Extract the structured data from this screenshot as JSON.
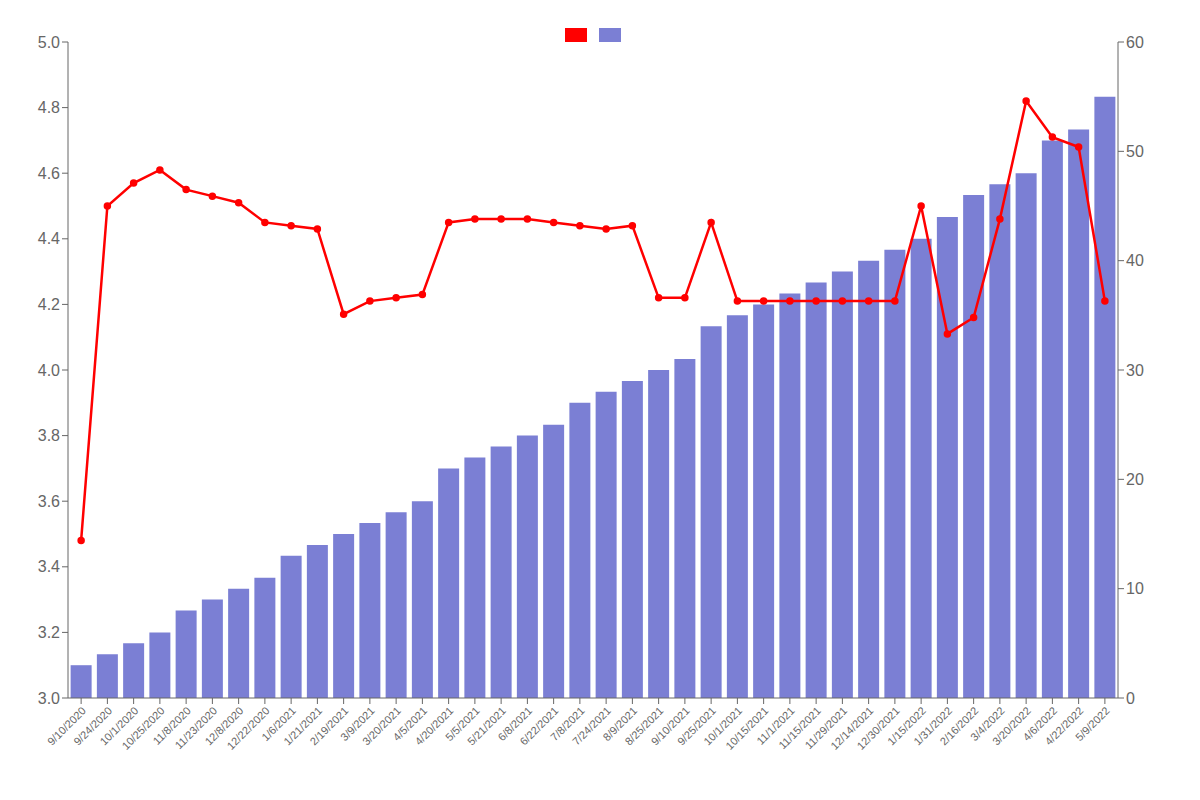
{
  "chart_data": {
    "type": "bar",
    "categories": [
      "9/10/2020",
      "9/24/2020",
      "10/1/2020",
      "10/25/2020",
      "11/8/2020",
      "11/23/2020",
      "12/8/2020",
      "12/22/2020",
      "1/6/2021",
      "1/21/2021",
      "2/19/2021",
      "3/9/2021",
      "3/20/2021",
      "4/5/2021",
      "4/20/2021",
      "5/5/2021",
      "5/21/2021",
      "6/8/2021",
      "6/22/2021",
      "7/8/2021",
      "7/24/2021",
      "8/9/2021",
      "8/25/2021",
      "9/10/2021",
      "9/25/2021",
      "10/1/2021",
      "10/15/2021",
      "11/1/2021",
      "11/15/2021",
      "11/29/2021",
      "12/14/2021",
      "12/30/2021",
      "1/15/2022",
      "1/31/2022",
      "2/16/2022",
      "3/4/2022",
      "3/20/2022",
      "4/6/2022",
      "4/22/2022",
      "5/9/2022"
    ],
    "series": [
      {
        "type": "bar",
        "color": "#7b7fd4",
        "axis": "y2",
        "values": [
          3,
          4,
          5,
          6,
          8,
          9,
          10,
          11,
          13,
          14,
          15,
          16,
          17,
          18,
          21,
          22,
          23,
          24,
          25,
          27,
          28,
          29,
          30,
          31,
          34,
          35,
          36,
          37,
          38,
          39,
          40,
          41,
          42,
          44,
          46,
          47,
          48,
          51,
          52,
          55
        ]
      },
      {
        "type": "line",
        "color": "#ff0000",
        "marker": "circle",
        "values": [
          3.48,
          4.5,
          4.57,
          4.61,
          4.55,
          4.53,
          4.51,
          4.45,
          4.44,
          4.43,
          4.17,
          4.21,
          4.22,
          4.23,
          4.45,
          4.46,
          4.46,
          4.46,
          4.45,
          4.44,
          4.43,
          4.44,
          4.22,
          4.22,
          4.45,
          4.21,
          4.21,
          4.21,
          4.21,
          4.21,
          4.21,
          4.21,
          4.5,
          4.11,
          4.16,
          4.46,
          4.82,
          4.71,
          4.68,
          4.21
        ]
      }
    ],
    "ylim": [
      3.0,
      5.0
    ],
    "yticks": [
      {
        "value": 3.0,
        "label": "3.0"
      },
      3.2,
      3.4,
      3.6,
      3.8,
      {
        "value": 4.0,
        "label": "4.0"
      },
      4.2,
      4.4,
      4.6,
      4.8,
      {
        "value": 5.0,
        "label": "5.0"
      }
    ],
    "y2lim": [
      0,
      60
    ],
    "y2ticks": [
      0,
      10,
      20,
      30,
      40,
      50,
      60
    ],
    "grid": false,
    "legend": "top"
  }
}
